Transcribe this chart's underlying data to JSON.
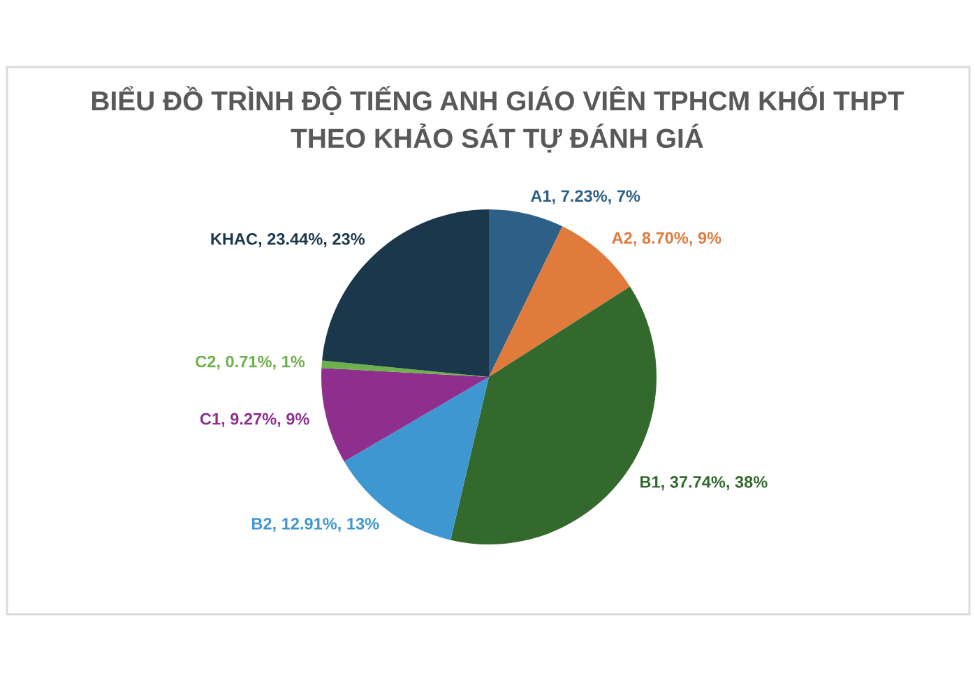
{
  "chart_data": {
    "type": "pie",
    "title": "BIỂU ĐỒ TRÌNH ĐỘ TIẾNG ANH GIÁO VIÊN TPHCM KHỐI THPT\nTHEO KHẢO SÁT TỰ ĐÁNH GIÁ",
    "categories": [
      "A1",
      "A2",
      "B1",
      "B2",
      "C1",
      "C2",
      "KHAC"
    ],
    "values": [
      7.23,
      8.7,
      37.74,
      12.91,
      9.27,
      0.71,
      23.44
    ],
    "value_labels": [
      "7.23%, 7%",
      "8.70%, 9%",
      "37.74%, 38%",
      "12.91%, 13%",
      "9.27%, 9%",
      "0.71%, 1%",
      "23.44%, 23%"
    ],
    "colors": [
      "#2e5f87",
      "#e07b3c",
      "#33692d",
      "#3f97d2",
      "#8e2f8e",
      "#6db14a",
      "#1b374c"
    ],
    "legend": false
  }
}
